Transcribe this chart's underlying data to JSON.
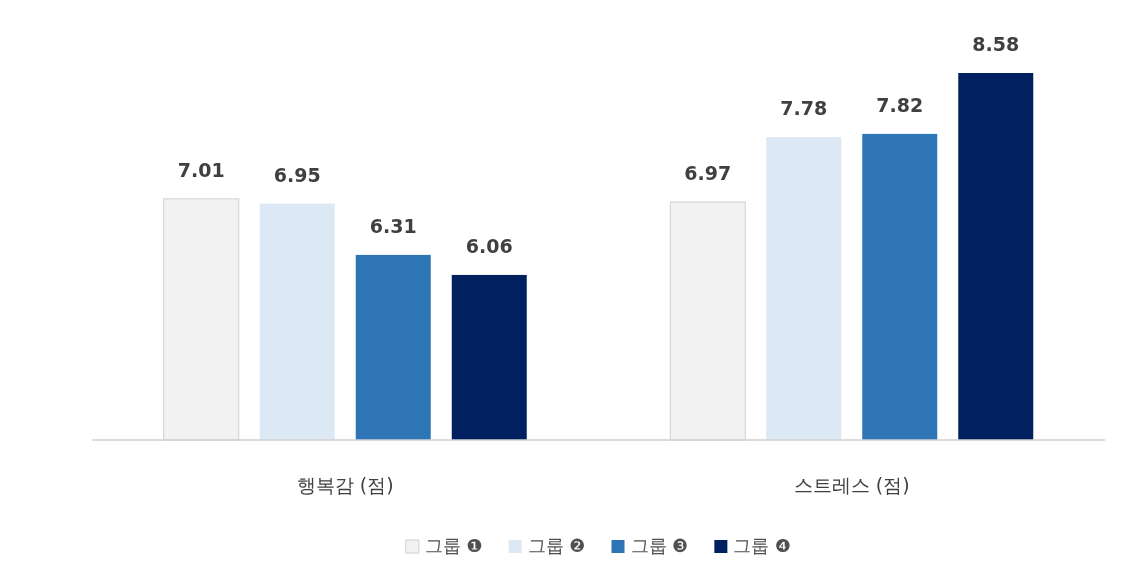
{
  "chart_data": {
    "type": "bar",
    "categories": [
      "행복감 (점)",
      "스트레스 (점)"
    ],
    "series": [
      {
        "name": "그룹 ❶",
        "color": "#f2f2f2",
        "values": [
          7.01,
          6.97
        ]
      },
      {
        "name": "그룹 ❷",
        "color": "#dde8f5",
        "values": [
          6.95,
          7.78
        ]
      },
      {
        "name": "그룹 ❸",
        "color": "#2e75b6",
        "values": [
          6.31,
          7.82
        ]
      },
      {
        "name": "그룹 ❹",
        "color": "#002060",
        "values": [
          6.06,
          8.58
        ]
      }
    ],
    "ylim": [
      4,
      8.58
    ],
    "data_labels": true,
    "legend": "bottom"
  }
}
